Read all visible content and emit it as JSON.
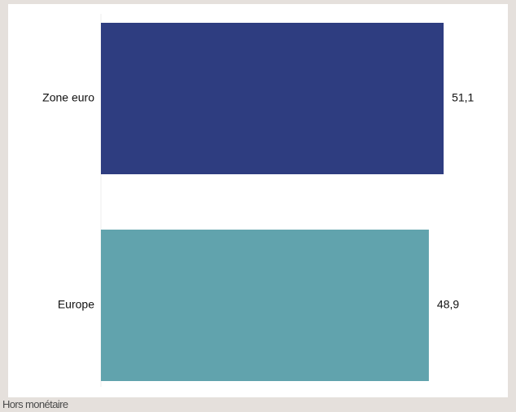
{
  "chart_data": {
    "type": "bar",
    "orientation": "horizontal",
    "categories": [
      "Zone euro",
      "Europe"
    ],
    "values": [
      51.1,
      48.9
    ],
    "value_labels": [
      "51,1",
      "48,9"
    ],
    "colors": [
      "#2e3d80",
      "#61a3ad"
    ],
    "xlim": [
      0,
      55
    ],
    "grid": false,
    "legend": "none",
    "title": "",
    "xlabel": "",
    "ylabel": ""
  },
  "caption": "Hors monétaire"
}
